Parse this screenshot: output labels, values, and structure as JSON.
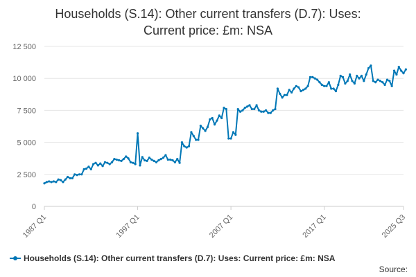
{
  "chart_data": {
    "type": "line",
    "title": "Households (S.14): Other current transfers (D.7): Uses:",
    "title_line2": "Current price: £m: NSA",
    "xlabel": "",
    "ylabel": "",
    "ylim": [
      0,
      12500
    ],
    "yticks": [
      0,
      2500,
      5000,
      7500,
      10000,
      12500
    ],
    "ytick_labels": [
      "0",
      "2 500",
      "5 000",
      "7 500",
      "10 000",
      "12 500"
    ],
    "xlim_quarter_index": [
      0,
      154
    ],
    "xtick_labels": [
      "1987 Q1",
      "1997 Q1",
      "2007 Q1",
      "2017 Q1",
      "2025 Q3"
    ],
    "xtick_quarter_index": [
      0,
      40,
      80,
      120,
      154
    ],
    "grid": "horizontal",
    "legend_position": "bottom-left",
    "series": [
      {
        "name": "Households (S.14): Other current transfers (D.7): Uses: Current price: £m: NSA",
        "color": "#0077b6",
        "values": [
          1800,
          1900,
          1950,
          1900,
          1950,
          1900,
          2100,
          2050,
          1900,
          2100,
          2300,
          2200,
          2200,
          2500,
          2450,
          2500,
          2500,
          2900,
          2950,
          3100,
          2900,
          3300,
          3400,
          3200,
          3350,
          3150,
          3450,
          3400,
          3300,
          3450,
          3700,
          3650,
          3600,
          3550,
          3700,
          3900,
          3750,
          3450,
          3400,
          3300,
          5700,
          3200,
          3850,
          3600,
          3550,
          3800,
          3650,
          3550,
          3450,
          3600,
          3700,
          3800,
          4000,
          3650,
          3650,
          3600,
          3450,
          3700,
          3400,
          5000,
          4700,
          4600,
          4700,
          5800,
          5500,
          5200,
          5200,
          6300,
          6100,
          5900,
          6200,
          6800,
          6900,
          6400,
          6700,
          7100,
          6900,
          7700,
          7600,
          5300,
          5300,
          5800,
          5600,
          7600,
          7400,
          7500,
          7700,
          7800,
          7900,
          7600,
          7600,
          7900,
          7500,
          7400,
          7400,
          7500,
          7300,
          7300,
          7500,
          7600,
          9200,
          8800,
          8500,
          8700,
          8700,
          9100,
          8900,
          9200,
          9400,
          9300,
          9000,
          9100,
          9200,
          9400,
          10100,
          10100,
          10000,
          9900,
          9700,
          9500,
          9400,
          9400,
          9700,
          9200,
          9200,
          9000,
          9500,
          10200,
          10100,
          9600,
          9800,
          10300,
          9800,
          9600,
          10200,
          10000,
          10200,
          9800,
          10300,
          10800,
          11000,
          9800,
          9700,
          9900,
          9800,
          9700,
          9500,
          9900,
          9800,
          9400,
          10600,
          10300,
          10900,
          10600,
          10400,
          10700
        ]
      }
    ]
  },
  "legend": {
    "label": "Households (S.14): Other current transfers (D.7): Uses: Current price: £m: NSA"
  },
  "source": {
    "label": "Source:"
  }
}
